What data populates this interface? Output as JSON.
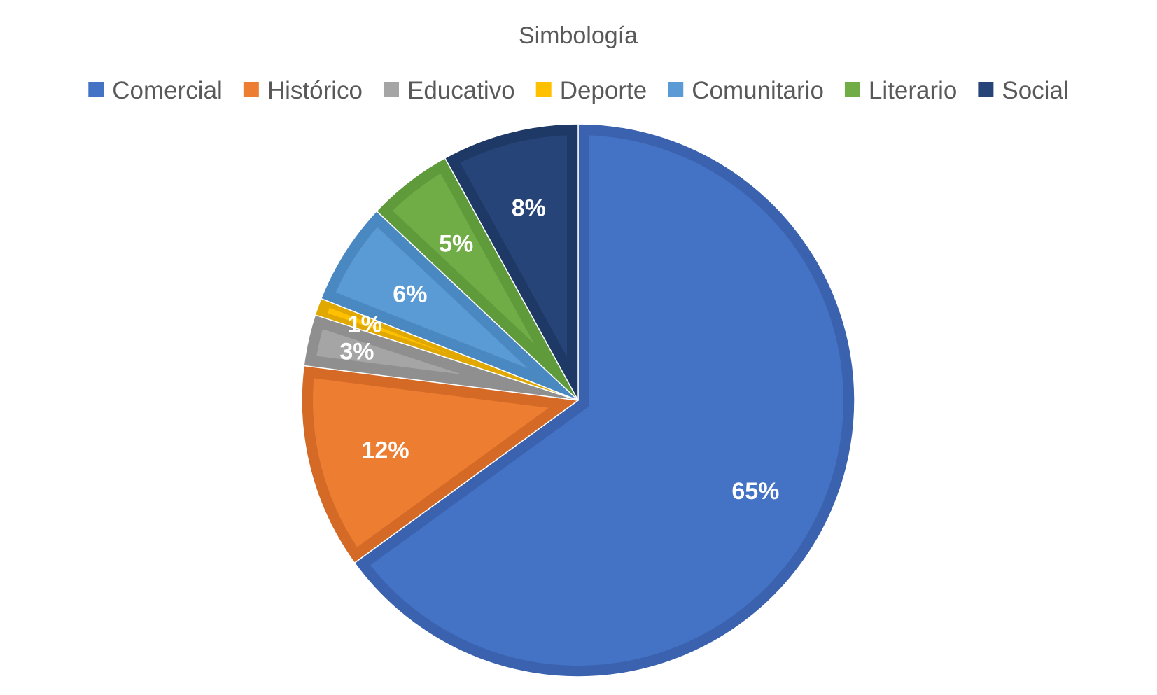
{
  "chart_data": {
    "type": "pie",
    "title": "Simbología",
    "legend_position": "top",
    "start_angle_deg": 0,
    "direction": "clockwise",
    "slices": [
      {
        "name": "Comercial",
        "value": 65,
        "label": "65%",
        "color": "#4472C4",
        "edge": "#3A62AE"
      },
      {
        "name": "Histórico",
        "value": 12,
        "label": "12%",
        "color": "#ED7D31",
        "edge": "#D46A26"
      },
      {
        "name": "Educativo",
        "value": 3,
        "label": "3%",
        "color": "#A5A5A5",
        "edge": "#8F8F8F"
      },
      {
        "name": "Deporte",
        "value": 1,
        "label": "1%",
        "color": "#FFC000",
        "edge": "#E0A800"
      },
      {
        "name": "Comunitario",
        "value": 6,
        "label": "6%",
        "color": "#5B9BD5",
        "edge": "#4A88C2"
      },
      {
        "name": "Literario",
        "value": 5,
        "label": "5%",
        "color": "#70AD47",
        "edge": "#5F9A3B"
      },
      {
        "name": "Social",
        "value": 8,
        "label": "8%",
        "color": "#264478",
        "edge": "#1F3966"
      }
    ]
  }
}
